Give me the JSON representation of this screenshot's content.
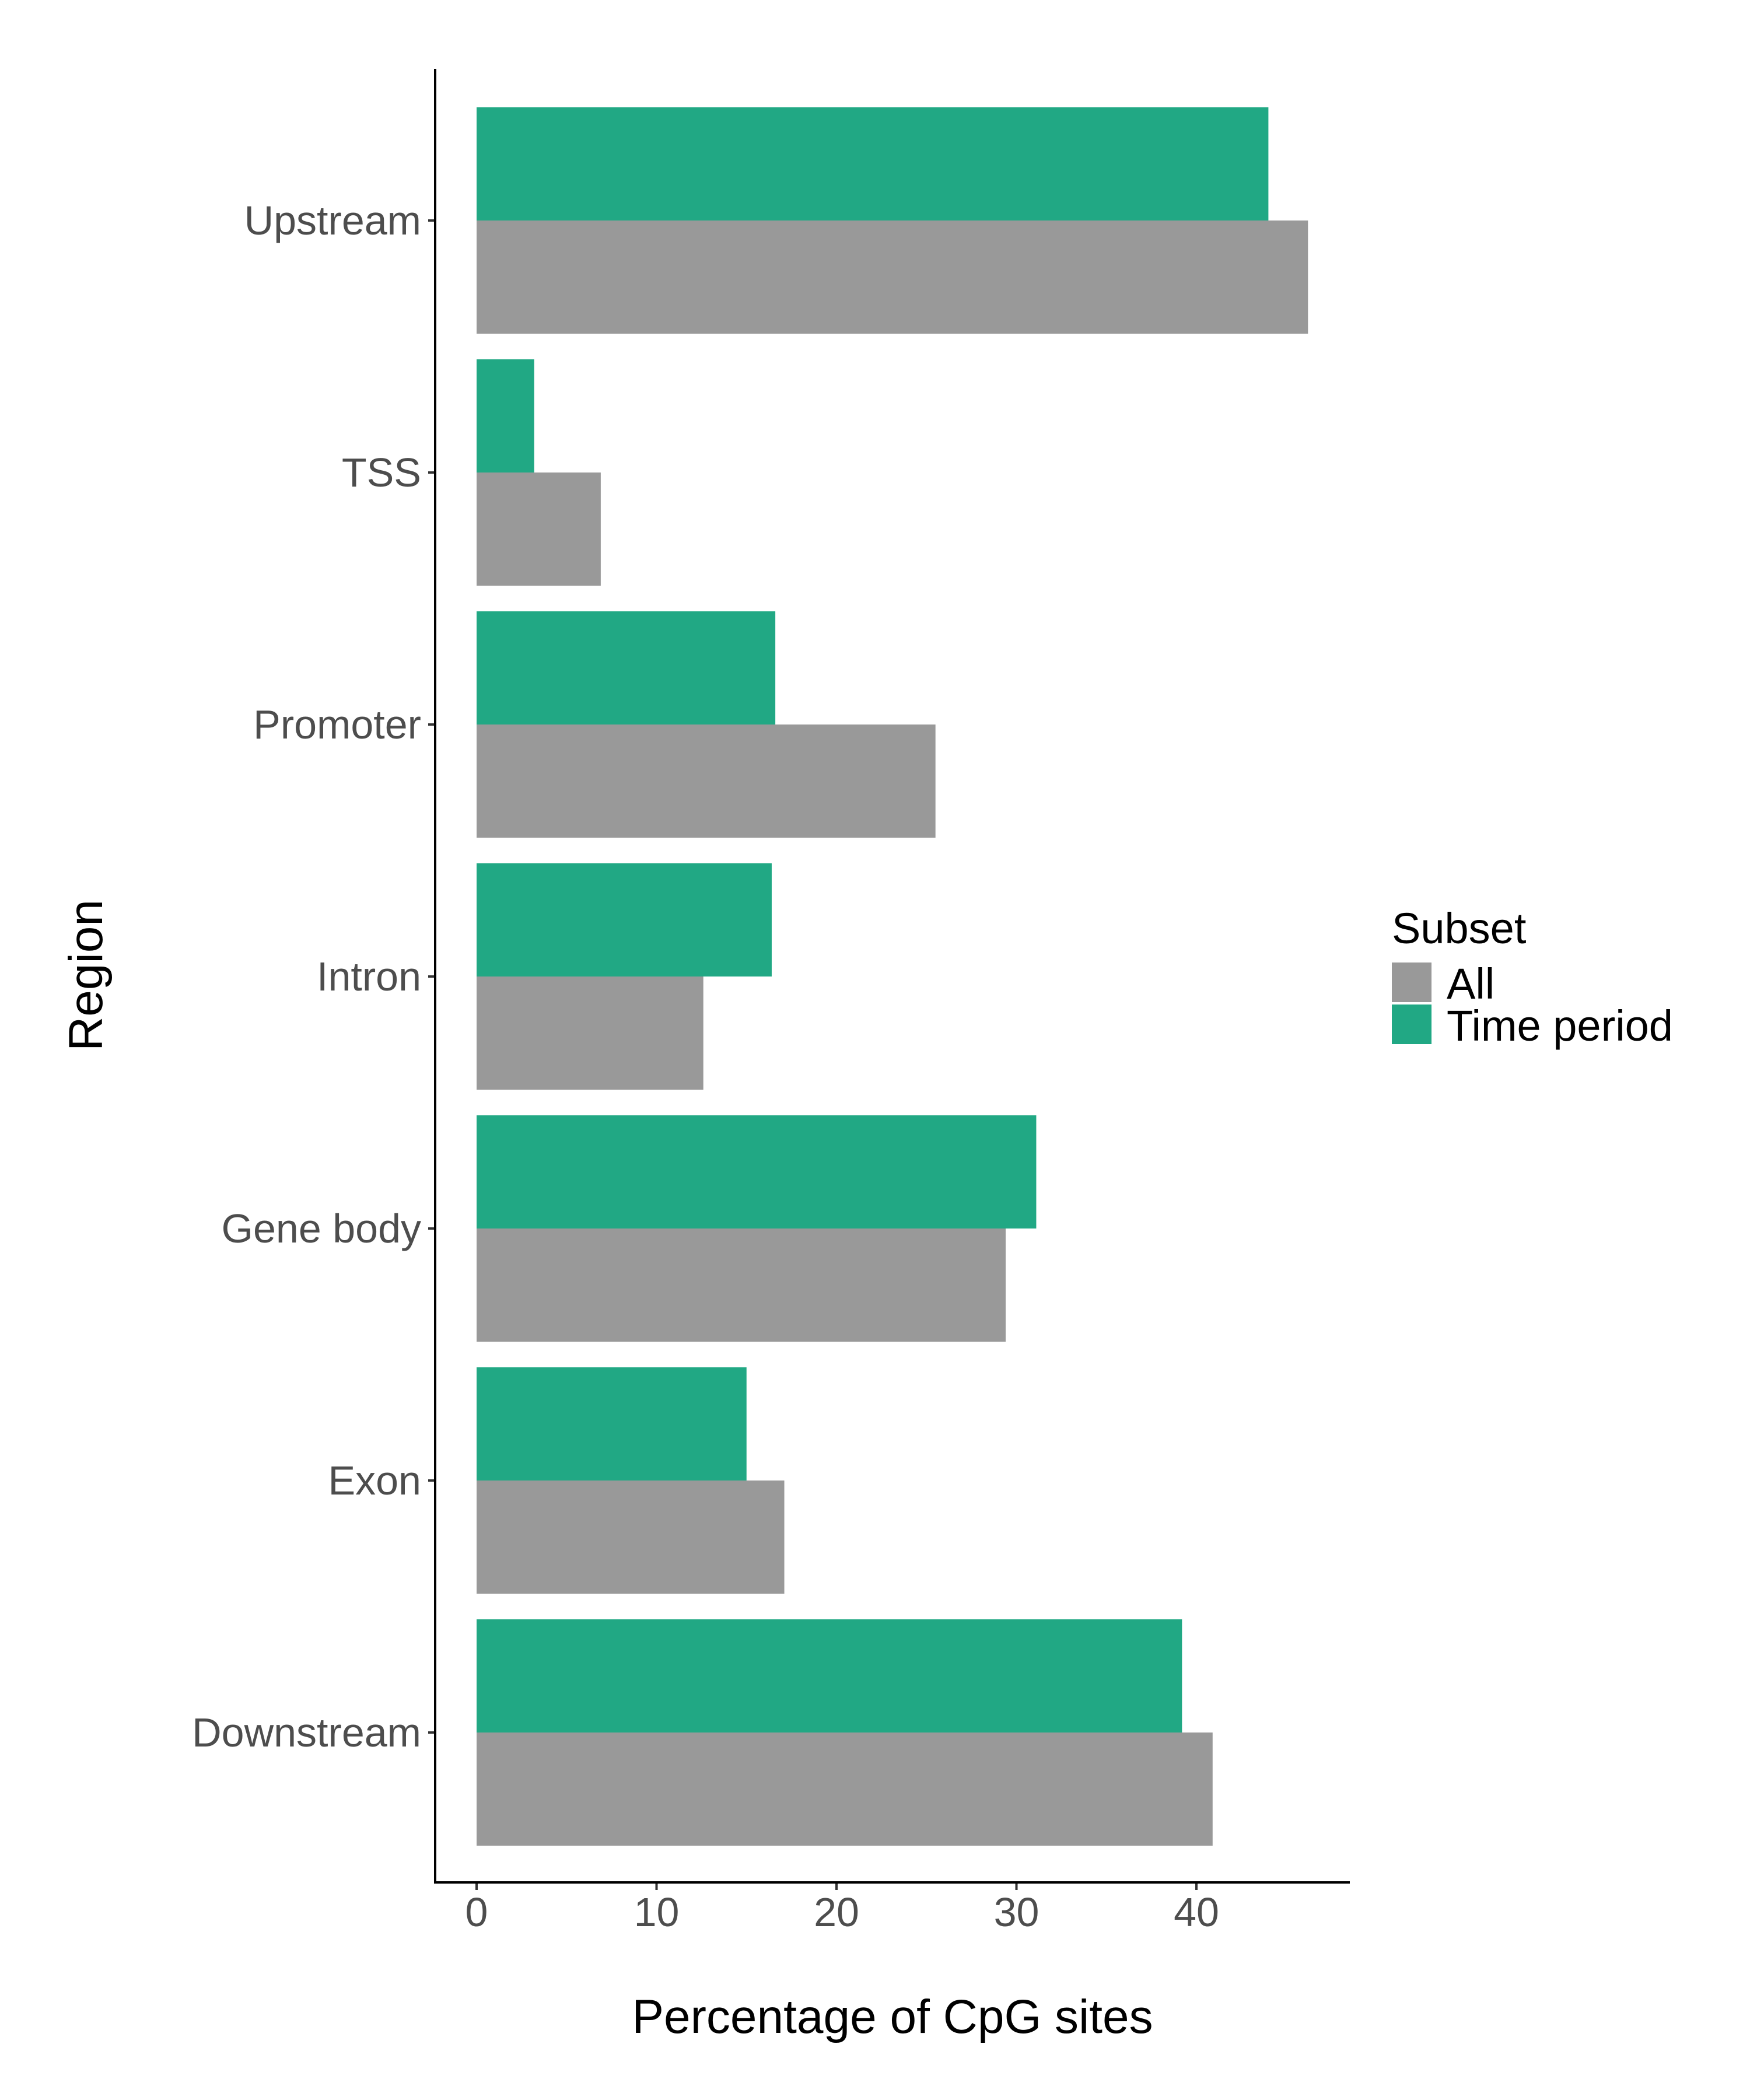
{
  "chart_data": {
    "type": "bar",
    "orientation": "horizontal",
    "categories": [
      "Upstream",
      "TSS",
      "Promoter",
      "Intron",
      "Gene body",
      "Exon",
      "Downstream"
    ],
    "series": [
      {
        "name": "Time period",
        "color": "#21a884",
        "values": [
          44.0,
          3.2,
          16.6,
          16.4,
          31.1,
          15.0,
          39.2
        ]
      },
      {
        "name": "All",
        "color": "#999999",
        "values": [
          46.2,
          6.9,
          25.5,
          12.6,
          29.4,
          17.1,
          40.9
        ]
      }
    ],
    "xlabel": "Percentage of CpG sites",
    "ylabel": "Region",
    "xlim": [
      0,
      48
    ],
    "x_ticks": [
      "0",
      "10",
      "20",
      "30",
      "40"
    ],
    "x_tick_values": [
      0,
      10,
      20,
      30,
      40
    ],
    "grid": false,
    "legend": {
      "title": "Subset",
      "placement": "right",
      "entries": [
        {
          "label": "All",
          "color": "#999999"
        },
        {
          "label": "Time period",
          "color": "#21a884"
        }
      ]
    }
  }
}
